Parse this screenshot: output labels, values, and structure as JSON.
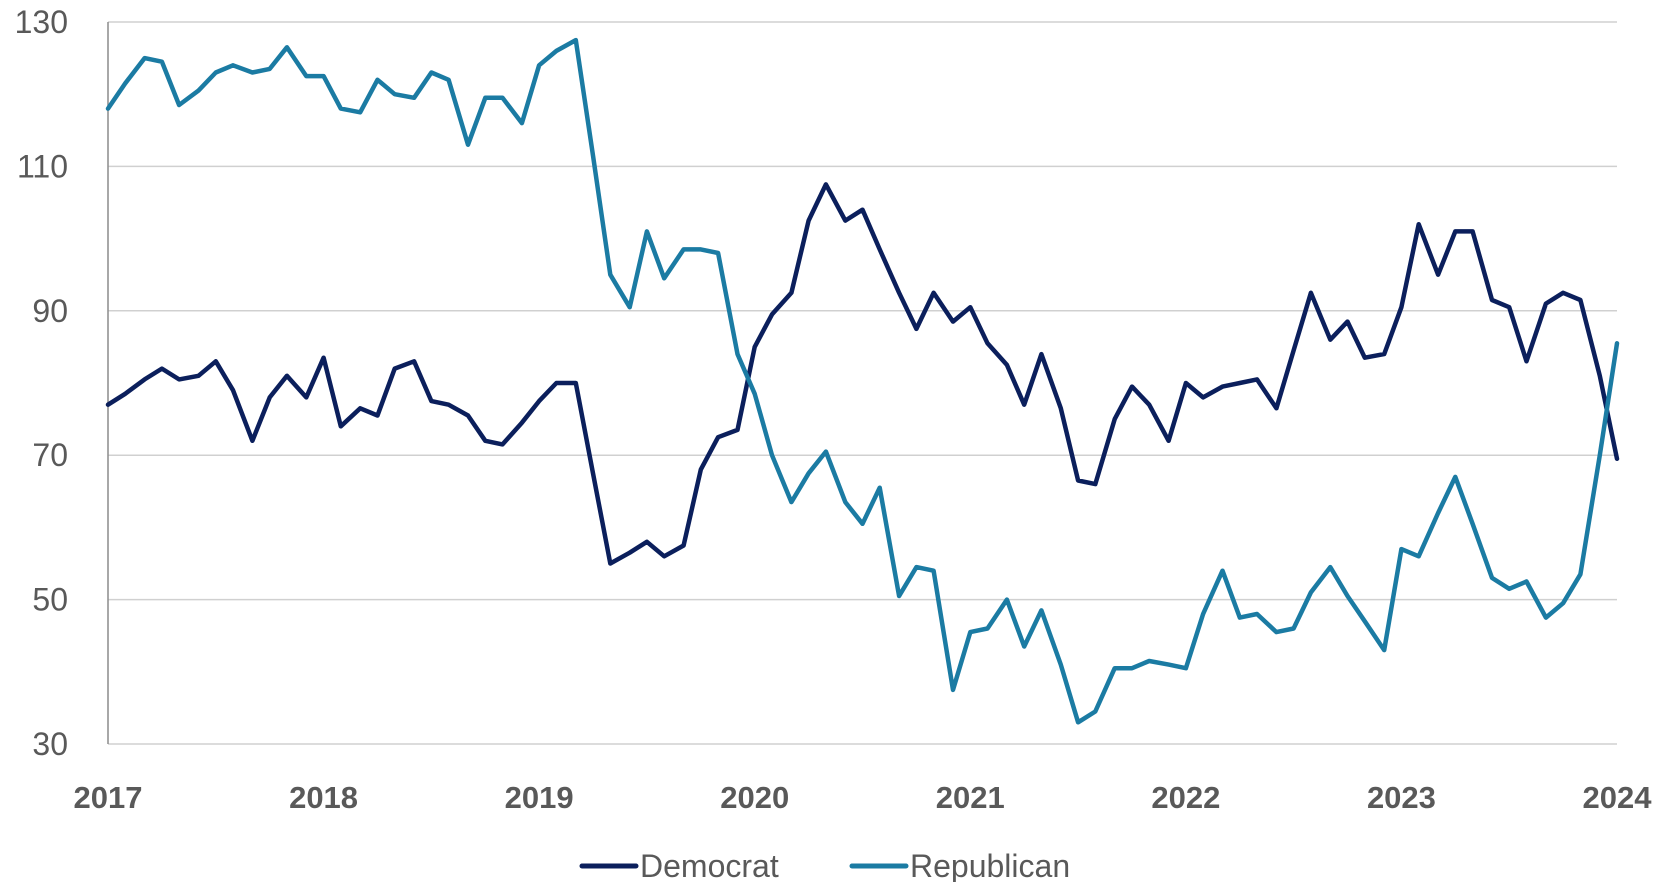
{
  "chart_data": {
    "type": "line",
    "title": "",
    "xlabel": "",
    "ylabel": "",
    "xlim": [
      2017,
      2024
    ],
    "ylim": [
      30,
      130
    ],
    "y_ticks": [
      30,
      50,
      70,
      90,
      110,
      130
    ],
    "x_ticks": [
      2017,
      2018,
      2019,
      2020,
      2021,
      2022,
      2023,
      2024
    ],
    "grid": "horizontal",
    "legend_position": "bottom",
    "series": [
      {
        "name": "Democrat",
        "color": "#0b1f5c",
        "points": [
          [
            2017.0,
            77.0
          ],
          [
            2017.08,
            78.5
          ],
          [
            2017.17,
            80.5
          ],
          [
            2017.25,
            82.0
          ],
          [
            2017.33,
            80.5
          ],
          [
            2017.42,
            81.0
          ],
          [
            2017.5,
            83.0
          ],
          [
            2017.58,
            79.0
          ],
          [
            2017.67,
            72.0
          ],
          [
            2017.75,
            78.0
          ],
          [
            2017.83,
            81.0
          ],
          [
            2017.92,
            78.0
          ],
          [
            2018.0,
            83.5
          ],
          [
            2018.08,
            74.0
          ],
          [
            2018.17,
            76.5
          ],
          [
            2018.25,
            75.5
          ],
          [
            2018.33,
            82.0
          ],
          [
            2018.42,
            83.0
          ],
          [
            2018.5,
            77.5
          ],
          [
            2018.58,
            77.0
          ],
          [
            2018.67,
            75.5
          ],
          [
            2018.75,
            72.0
          ],
          [
            2018.83,
            71.5
          ],
          [
            2018.92,
            74.5
          ],
          [
            2019.0,
            77.5
          ],
          [
            2019.08,
            80.0
          ],
          [
            2019.17,
            80.0
          ],
          [
            2019.25,
            67.5
          ],
          [
            2019.33,
            55.0
          ],
          [
            2019.42,
            56.5
          ],
          [
            2019.5,
            58.0
          ],
          [
            2019.58,
            56.0
          ],
          [
            2019.67,
            57.5
          ],
          [
            2019.75,
            68.0
          ],
          [
            2019.83,
            72.5
          ],
          [
            2019.92,
            73.5
          ],
          [
            2020.0,
            85.0
          ],
          [
            2020.08,
            89.5
          ],
          [
            2020.17,
            92.5
          ],
          [
            2020.25,
            102.5
          ],
          [
            2020.33,
            107.5
          ],
          [
            2020.42,
            102.5
          ],
          [
            2020.5,
            104.0
          ],
          [
            2020.58,
            98.5
          ],
          [
            2020.67,
            92.5
          ],
          [
            2020.75,
            87.5
          ],
          [
            2020.83,
            92.5
          ],
          [
            2020.92,
            88.5
          ],
          [
            2021.0,
            90.5
          ],
          [
            2021.08,
            85.5
          ],
          [
            2021.17,
            82.5
          ],
          [
            2021.25,
            77.0
          ],
          [
            2021.33,
            84.0
          ],
          [
            2021.42,
            76.5
          ],
          [
            2021.5,
            66.5
          ],
          [
            2021.58,
            66.0
          ],
          [
            2021.67,
            75.0
          ],
          [
            2021.75,
            79.5
          ],
          [
            2021.83,
            77.0
          ],
          [
            2021.92,
            72.0
          ],
          [
            2022.0,
            80.0
          ],
          [
            2022.08,
            78.0
          ],
          [
            2022.17,
            79.5
          ],
          [
            2022.25,
            80.0
          ],
          [
            2022.33,
            80.5
          ],
          [
            2022.42,
            76.5
          ],
          [
            2022.5,
            84.5
          ],
          [
            2022.58,
            92.5
          ],
          [
            2022.67,
            86.0
          ],
          [
            2022.75,
            88.5
          ],
          [
            2022.83,
            83.5
          ],
          [
            2022.92,
            84.0
          ],
          [
            2023.0,
            90.5
          ],
          [
            2023.08,
            102.0
          ],
          [
            2023.17,
            95.0
          ],
          [
            2023.25,
            101.0
          ],
          [
            2023.33,
            101.0
          ],
          [
            2023.42,
            91.5
          ],
          [
            2023.5,
            90.5
          ],
          [
            2023.58,
            83.0
          ],
          [
            2023.67,
            91.0
          ],
          [
            2023.75,
            92.5
          ],
          [
            2023.83,
            91.5
          ],
          [
            2023.92,
            81.0
          ],
          [
            2024.0,
            69.5
          ]
        ]
      },
      {
        "name": "Republican",
        "color": "#1b7ba3",
        "points": [
          [
            2017.0,
            118.0
          ],
          [
            2017.08,
            121.5
          ],
          [
            2017.17,
            125.0
          ],
          [
            2017.25,
            124.5
          ],
          [
            2017.33,
            118.5
          ],
          [
            2017.42,
            120.5
          ],
          [
            2017.5,
            123.0
          ],
          [
            2017.58,
            124.0
          ],
          [
            2017.67,
            123.0
          ],
          [
            2017.75,
            123.5
          ],
          [
            2017.83,
            126.5
          ],
          [
            2017.92,
            122.5
          ],
          [
            2018.0,
            122.5
          ],
          [
            2018.08,
            118.0
          ],
          [
            2018.17,
            117.5
          ],
          [
            2018.25,
            122.0
          ],
          [
            2018.33,
            120.0
          ],
          [
            2018.42,
            119.5
          ],
          [
            2018.5,
            123.0
          ],
          [
            2018.58,
            122.0
          ],
          [
            2018.67,
            113.0
          ],
          [
            2018.75,
            119.5
          ],
          [
            2018.83,
            119.5
          ],
          [
            2018.92,
            116.0
          ],
          [
            2019.0,
            124.0
          ],
          [
            2019.08,
            126.0
          ],
          [
            2019.17,
            127.5
          ],
          [
            2019.25,
            111.5
          ],
          [
            2019.33,
            95.0
          ],
          [
            2019.42,
            90.5
          ],
          [
            2019.5,
            101.0
          ],
          [
            2019.58,
            94.5
          ],
          [
            2019.67,
            98.5
          ],
          [
            2019.75,
            98.5
          ],
          [
            2019.83,
            98.0
          ],
          [
            2019.92,
            84.0
          ],
          [
            2020.0,
            78.5
          ],
          [
            2020.08,
            70.0
          ],
          [
            2020.17,
            63.5
          ],
          [
            2020.25,
            67.5
          ],
          [
            2020.33,
            70.5
          ],
          [
            2020.42,
            63.5
          ],
          [
            2020.5,
            60.5
          ],
          [
            2020.58,
            65.5
          ],
          [
            2020.67,
            50.5
          ],
          [
            2020.75,
            54.5
          ],
          [
            2020.83,
            54.0
          ],
          [
            2020.92,
            37.5
          ],
          [
            2021.0,
            45.5
          ],
          [
            2021.08,
            46.0
          ],
          [
            2021.17,
            50.0
          ],
          [
            2021.25,
            43.5
          ],
          [
            2021.33,
            48.5
          ],
          [
            2021.42,
            41.0
          ],
          [
            2021.5,
            33.0
          ],
          [
            2021.58,
            34.5
          ],
          [
            2021.67,
            40.5
          ],
          [
            2021.75,
            40.5
          ],
          [
            2021.83,
            41.5
          ],
          [
            2021.92,
            41.0
          ],
          [
            2022.0,
            40.5
          ],
          [
            2022.08,
            48.0
          ],
          [
            2022.17,
            54.0
          ],
          [
            2022.25,
            47.5
          ],
          [
            2022.33,
            48.0
          ],
          [
            2022.42,
            45.5
          ],
          [
            2022.5,
            46.0
          ],
          [
            2022.58,
            51.0
          ],
          [
            2022.67,
            54.5
          ],
          [
            2022.75,
            50.5
          ],
          [
            2022.83,
            47.0
          ],
          [
            2022.92,
            43.0
          ],
          [
            2023.0,
            57.0
          ],
          [
            2023.08,
            56.0
          ],
          [
            2023.17,
            62.0
          ],
          [
            2023.25,
            67.0
          ],
          [
            2023.33,
            60.5
          ],
          [
            2023.42,
            53.0
          ],
          [
            2023.5,
            51.5
          ],
          [
            2023.58,
            52.5
          ],
          [
            2023.67,
            47.5
          ],
          [
            2023.75,
            49.5
          ],
          [
            2023.83,
            53.5
          ],
          [
            2023.92,
            70.0
          ],
          [
            2024.0,
            85.5
          ]
        ]
      }
    ]
  }
}
